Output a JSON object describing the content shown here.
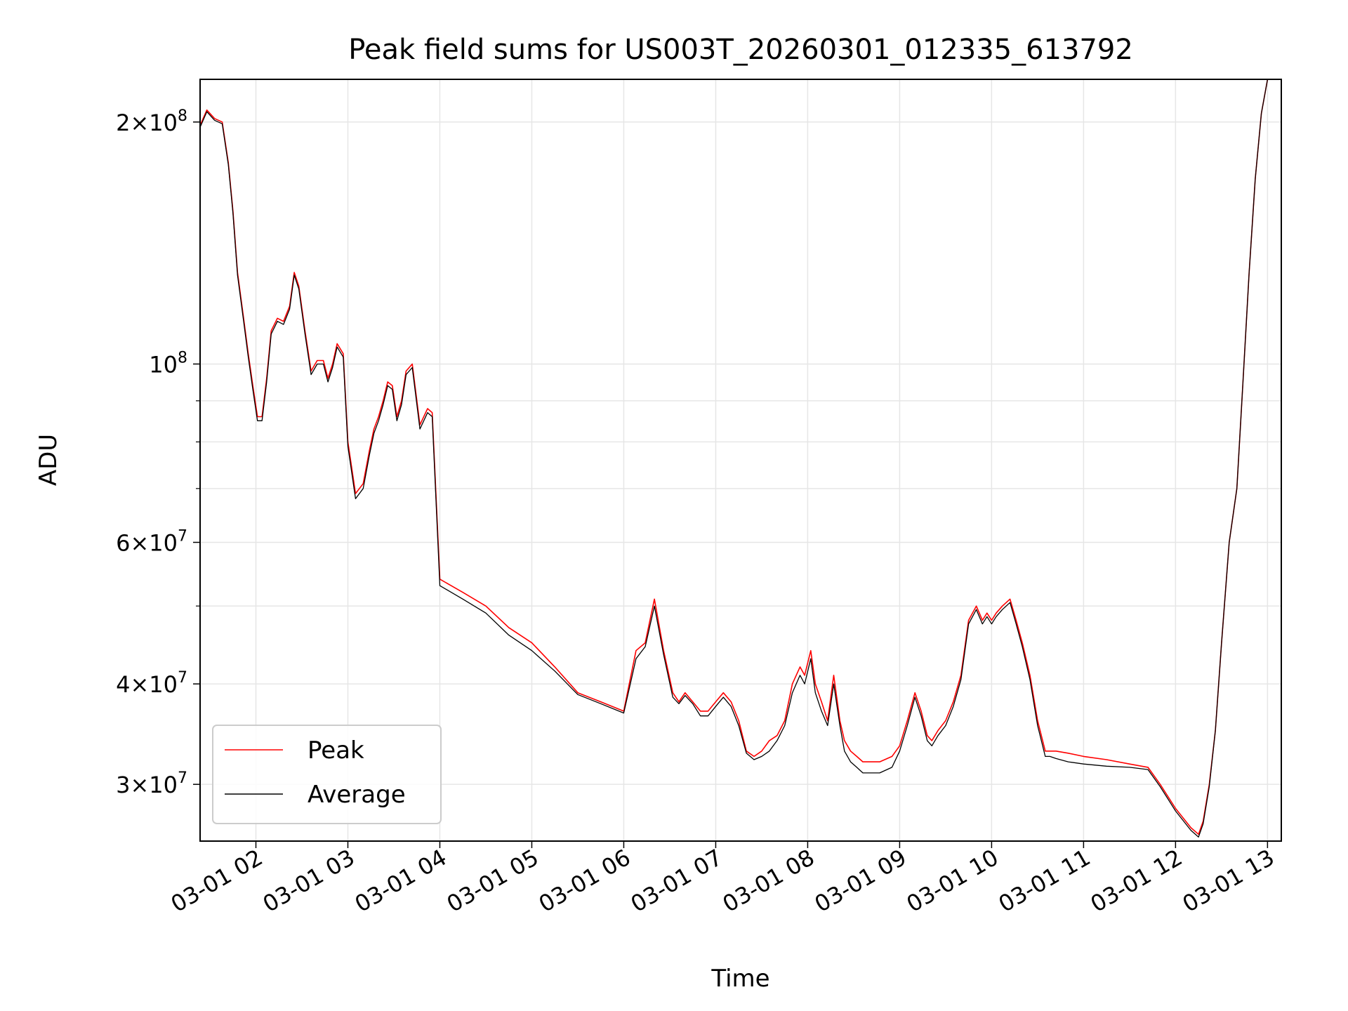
{
  "chart_data": {
    "type": "line",
    "title": "Peak field sums for US003T_20260301_012335_613792",
    "xlabel": "Time",
    "ylabel": "ADU",
    "yscale": "log",
    "ylim": [
      25500000,
      226000000
    ],
    "xlim": [
      "03-01 01:23:35",
      "03-01 13:09:00"
    ],
    "grid": true,
    "legend_position": "lower-left",
    "x_ticks": [
      "03-01 02",
      "03-01 03",
      "03-01 04",
      "03-01 05",
      "03-01 06",
      "03-01 07",
      "03-01 08",
      "03-01 09",
      "03-01 10",
      "03-01 11",
      "03-01 12",
      "03-01 13"
    ],
    "y_major_ticks": [
      {
        "value": 30000000,
        "mantissa": "3",
        "exp": "7"
      },
      {
        "value": 40000000,
        "mantissa": "4",
        "exp": "7"
      },
      {
        "value": 60000000,
        "mantissa": "6",
        "exp": "7"
      },
      {
        "value": 100000000,
        "mantissa": "",
        "exp": "8"
      },
      {
        "value": 200000000,
        "mantissa": "2",
        "exp": "8"
      }
    ],
    "y_minor_ticks": [
      50000000,
      70000000,
      80000000,
      90000000
    ],
    "colors": {
      "peak": "#ff0000",
      "average": "#000000"
    },
    "series": [
      {
        "name": "Peak",
        "color": "#ff0000",
        "x": [
          "03-01 01:23:35",
          "03-01 01:28",
          "03-01 01:33",
          "03-01 01:38",
          "03-01 01:42",
          "03-01 01:45",
          "03-01 01:48",
          "03-01 01:52",
          "03-01 01:55",
          "03-01 01:58",
          "03-01 02:01",
          "03-01 02:04",
          "03-01 02:07",
          "03-01 02:10",
          "03-01 02:14",
          "03-01 02:18",
          "03-01 02:22",
          "03-01 02:25",
          "03-01 02:28",
          "03-01 02:32",
          "03-01 02:36",
          "03-01 02:40",
          "03-01 02:44",
          "03-01 02:47",
          "03-01 02:50",
          "03-01 02:53",
          "03-01 02:57",
          "03-01 03:00",
          "03-01 03:05",
          "03-01 03:10",
          "03-01 03:14",
          "03-01 03:17",
          "03-01 03:20",
          "03-01 03:23",
          "03-01 03:26",
          "03-01 03:29",
          "03-01 03:32",
          "03-01 03:35",
          "03-01 03:38",
          "03-01 03:42",
          "03-01 03:47",
          "03-01 03:52",
          "03-01 03:55",
          "03-01 04:00",
          "03-01 04:15",
          "03-01 04:30",
          "03-01 04:45",
          "03-01 05:00",
          "03-01 05:15",
          "03-01 05:30",
          "03-01 05:45",
          "03-01 06:00",
          "03-01 06:08",
          "03-01 06:14",
          "03-01 06:20",
          "03-01 06:26",
          "03-01 06:32",
          "03-01 06:36",
          "03-01 06:40",
          "03-01 06:45",
          "03-01 06:50",
          "03-01 06:55",
          "03-01 07:00",
          "03-01 07:05",
          "03-01 07:10",
          "03-01 07:15",
          "03-01 07:20",
          "03-01 07:25",
          "03-01 07:30",
          "03-01 07:35",
          "03-01 07:40",
          "03-01 07:45",
          "03-01 07:50",
          "03-01 07:55",
          "03-01 07:58",
          "03-01 08:02",
          "03-01 08:05",
          "03-01 08:09",
          "03-01 08:13",
          "03-01 08:17",
          "03-01 08:21",
          "03-01 08:24",
          "03-01 08:28",
          "03-01 08:32",
          "03-01 08:36",
          "03-01 08:41",
          "03-01 08:47",
          "03-01 08:55",
          "03-01 09:00",
          "03-01 09:05",
          "03-01 09:10",
          "03-01 09:14",
          "03-01 09:18",
          "03-01 09:21",
          "03-01 09:25",
          "03-01 09:30",
          "03-01 09:35",
          "03-01 09:40",
          "03-01 09:45",
          "03-01 09:50",
          "03-01 09:54",
          "03-01 09:57",
          "03-01 10:00",
          "03-01 10:03",
          "03-01 10:07",
          "03-01 10:12",
          "03-01 10:16",
          "03-01 10:20",
          "03-01 10:25",
          "03-01 10:30",
          "03-01 10:35",
          "03-01 10:38",
          "03-01 10:42",
          "03-01 10:50",
          "03-01 11:00",
          "03-01 11:15",
          "03-01 11:30",
          "03-01 11:42",
          "03-01 11:50",
          "03-01 12:00",
          "03-01 12:10",
          "03-01 12:15",
          "03-01 12:18",
          "03-01 12:22",
          "03-01 12:26",
          "03-01 12:30",
          "03-01 12:35",
          "03-01 12:40",
          "03-01 12:44",
          "03-01 12:48",
          "03-01 12:52",
          "03-01 12:56",
          "03-01 13:00"
        ],
        "y": [
          198000000,
          207000000,
          202000000,
          200000000,
          178000000,
          155000000,
          130000000,
          114000000,
          103000000,
          94000000,
          86000000,
          86000000,
          96000000,
          110000000,
          114000000,
          113000000,
          118000000,
          130000000,
          125000000,
          110000000,
          98000000,
          101000000,
          101000000,
          96000000,
          100000000,
          106000000,
          103000000,
          80000000,
          69000000,
          71000000,
          78000000,
          83000000,
          86000000,
          90000000,
          95000000,
          94000000,
          86000000,
          90000000,
          98000000,
          100000000,
          84000000,
          88000000,
          87000000,
          54000000,
          52000000,
          50000000,
          47000000,
          45000000,
          42000000,
          39000000,
          38000000,
          37000000,
          44000000,
          45000000,
          51000000,
          44000000,
          39000000,
          38000000,
          39000000,
          38000000,
          37000000,
          37000000,
          38000000,
          39000000,
          38000000,
          36000000,
          33000000,
          32500000,
          33000000,
          34000000,
          34500000,
          36000000,
          40000000,
          42000000,
          41000000,
          44000000,
          40000000,
          38000000,
          36000000,
          41000000,
          36000000,
          34000000,
          33000000,
          32500000,
          32000000,
          32000000,
          32000000,
          32500000,
          33500000,
          36000000,
          39000000,
          37000000,
          34500000,
          34000000,
          35000000,
          36000000,
          38000000,
          41000000,
          48000000,
          50000000,
          48000000,
          49000000,
          48000000,
          49000000,
          50000000,
          51000000,
          48000000,
          45000000,
          41000000,
          36000000,
          33000000,
          33000000,
          33000000,
          32800000,
          32500000,
          32200000,
          31800000,
          31500000,
          30000000,
          28000000,
          26500000,
          26000000,
          27000000,
          30000000,
          35000000,
          45000000,
          60000000,
          70000000,
          95000000,
          130000000,
          170000000,
          205000000,
          226000000
        ]
      },
      {
        "name": "Average",
        "color": "#000000",
        "x": [
          "03-01 01:23:35",
          "03-01 01:28",
          "03-01 01:33",
          "03-01 01:38",
          "03-01 01:42",
          "03-01 01:45",
          "03-01 01:48",
          "03-01 01:52",
          "03-01 01:55",
          "03-01 01:58",
          "03-01 02:01",
          "03-01 02:04",
          "03-01 02:07",
          "03-01 02:10",
          "03-01 02:14",
          "03-01 02:18",
          "03-01 02:22",
          "03-01 02:25",
          "03-01 02:28",
          "03-01 02:32",
          "03-01 02:36",
          "03-01 02:40",
          "03-01 02:44",
          "03-01 02:47",
          "03-01 02:50",
          "03-01 02:53",
          "03-01 02:57",
          "03-01 03:00",
          "03-01 03:05",
          "03-01 03:10",
          "03-01 03:14",
          "03-01 03:17",
          "03-01 03:20",
          "03-01 03:23",
          "03-01 03:26",
          "03-01 03:29",
          "03-01 03:32",
          "03-01 03:35",
          "03-01 03:38",
          "03-01 03:42",
          "03-01 03:47",
          "03-01 03:52",
          "03-01 03:55",
          "03-01 04:00",
          "03-01 04:15",
          "03-01 04:30",
          "03-01 04:45",
          "03-01 05:00",
          "03-01 05:15",
          "03-01 05:30",
          "03-01 05:45",
          "03-01 06:00",
          "03-01 06:08",
          "03-01 06:14",
          "03-01 06:20",
          "03-01 06:26",
          "03-01 06:32",
          "03-01 06:36",
          "03-01 06:40",
          "03-01 06:45",
          "03-01 06:50",
          "03-01 06:55",
          "03-01 07:00",
          "03-01 07:05",
          "03-01 07:10",
          "03-01 07:15",
          "03-01 07:20",
          "03-01 07:25",
          "03-01 07:30",
          "03-01 07:35",
          "03-01 07:40",
          "03-01 07:45",
          "03-01 07:50",
          "03-01 07:55",
          "03-01 07:58",
          "03-01 08:02",
          "03-01 08:05",
          "03-01 08:09",
          "03-01 08:13",
          "03-01 08:17",
          "03-01 08:21",
          "03-01 08:24",
          "03-01 08:28",
          "03-01 08:32",
          "03-01 08:36",
          "03-01 08:41",
          "03-01 08:47",
          "03-01 08:55",
          "03-01 09:00",
          "03-01 09:05",
          "03-01 09:10",
          "03-01 09:14",
          "03-01 09:18",
          "03-01 09:21",
          "03-01 09:25",
          "03-01 09:30",
          "03-01 09:35",
          "03-01 09:40",
          "03-01 09:45",
          "03-01 09:50",
          "03-01 09:54",
          "03-01 09:57",
          "03-01 10:00",
          "03-01 10:03",
          "03-01 10:07",
          "03-01 10:12",
          "03-01 10:16",
          "03-01 10:20",
          "03-01 10:25",
          "03-01 10:30",
          "03-01 10:35",
          "03-01 10:38",
          "03-01 10:42",
          "03-01 10:50",
          "03-01 11:00",
          "03-01 11:15",
          "03-01 11:30",
          "03-01 11:42",
          "03-01 11:50",
          "03-01 12:00",
          "03-01 12:10",
          "03-01 12:15",
          "03-01 12:18",
          "03-01 12:22",
          "03-01 12:26",
          "03-01 12:30",
          "03-01 12:35",
          "03-01 12:40",
          "03-01 12:44",
          "03-01 12:48",
          "03-01 12:52",
          "03-01 12:56",
          "03-01 13:00"
        ],
        "y": [
          197000000,
          206000000,
          201000000,
          199000000,
          177000000,
          154000000,
          129000000,
          113000000,
          102000000,
          93000000,
          85000000,
          85000000,
          95000000,
          109000000,
          113000000,
          112000000,
          117000000,
          129000000,
          124000000,
          109000000,
          97000000,
          100000000,
          100000000,
          95000000,
          99000000,
          105000000,
          102000000,
          79000000,
          68000000,
          70000000,
          77000000,
          82000000,
          85000000,
          89000000,
          94000000,
          93000000,
          85000000,
          89000000,
          97000000,
          99000000,
          83000000,
          87000000,
          86000000,
          53000000,
          51000000,
          49000000,
          46000000,
          44000000,
          41500000,
          38800000,
          37800000,
          36800000,
          43000000,
          44500000,
          50000000,
          43500000,
          38500000,
          37800000,
          38700000,
          37800000,
          36500000,
          36500000,
          37500000,
          38500000,
          37500000,
          35500000,
          32800000,
          32200000,
          32500000,
          33000000,
          34000000,
          35500000,
          39000000,
          41000000,
          40000000,
          43000000,
          39000000,
          37000000,
          35500000,
          40000000,
          35500000,
          33000000,
          32000000,
          31500000,
          31000000,
          31000000,
          31000000,
          31500000,
          33000000,
          35500000,
          38500000,
          36500000,
          34000000,
          33500000,
          34500000,
          35500000,
          37500000,
          40500000,
          47500000,
          49500000,
          47500000,
          48500000,
          47500000,
          48500000,
          49500000,
          50500000,
          47500000,
          44500000,
          40500000,
          35500000,
          32500000,
          32500000,
          32300000,
          32000000,
          31800000,
          31600000,
          31500000,
          31300000,
          29800000,
          27800000,
          26300000,
          25800000,
          26800000,
          29800000,
          35000000,
          45000000,
          60000000,
          70000000,
          95000000,
          130000000,
          170000000,
          205000000,
          226000000
        ]
      }
    ]
  }
}
